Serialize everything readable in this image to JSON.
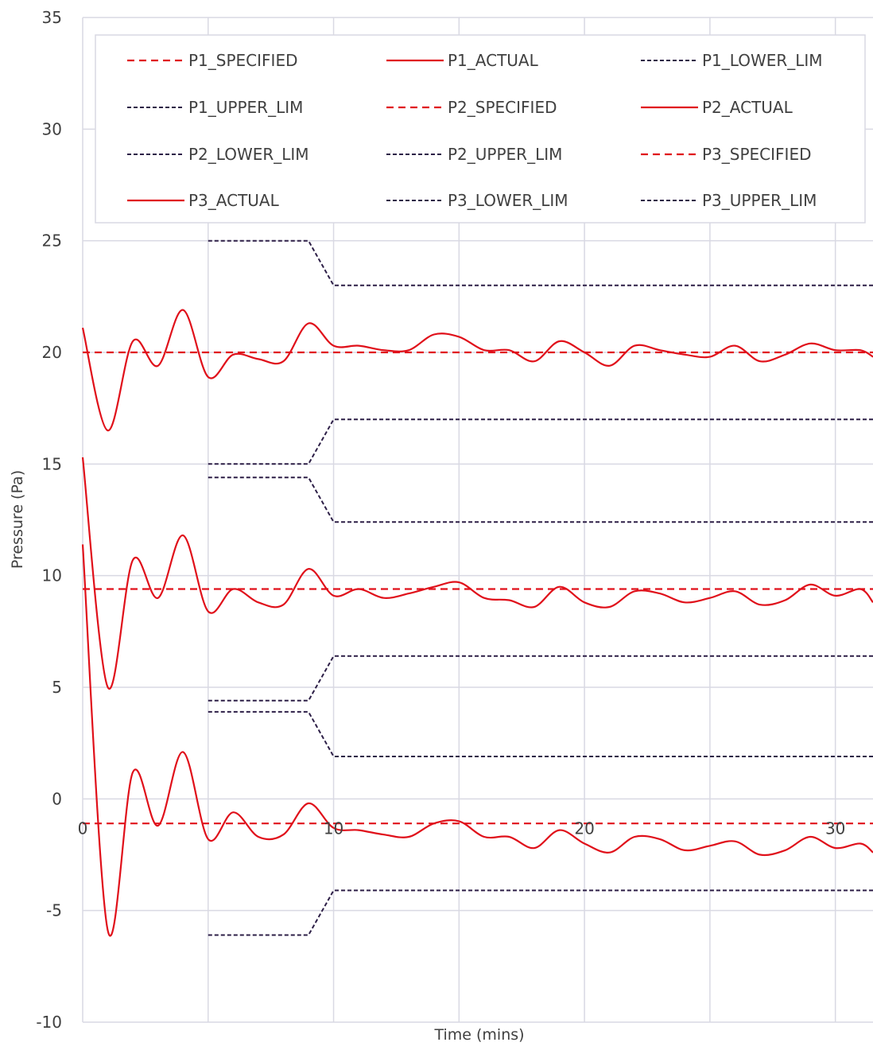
{
  "chart_data": {
    "type": "line",
    "title": "",
    "xlabel": "Time (mins)",
    "ylabel": "Pressure (Pa)",
    "xlim": [
      0,
      31.5
    ],
    "ylim": [
      -10,
      35
    ],
    "x_ticks": [
      0,
      10,
      20,
      30
    ],
    "y_ticks": [
      -10,
      -5,
      0,
      5,
      10,
      15,
      20,
      25,
      30,
      35
    ],
    "x_tick_labels": [
      "0",
      "10",
      "20",
      "30"
    ],
    "y_tick_labels": [
      "-10",
      "-5",
      "0",
      "5",
      "10",
      "15",
      "20",
      "25",
      "30",
      "35"
    ],
    "x_gridlines": [
      0,
      5,
      10,
      15,
      20,
      25,
      30
    ],
    "grid": true,
    "legend_position": "top",
    "colors": {
      "red": "#e0101a",
      "navy": "#2d1f47",
      "grid": "#d9d9e3"
    },
    "series": [
      {
        "name": "P1_SPECIFIED",
        "style": "dashed-red",
        "x": [
          0,
          31.5
        ],
        "y": [
          20,
          20
        ]
      },
      {
        "name": "P1_ACTUAL",
        "style": "solid-red",
        "x": [
          0,
          1,
          2,
          3,
          4,
          5,
          6,
          7,
          8,
          9,
          10,
          11,
          12,
          13,
          14,
          15,
          16,
          17,
          18,
          19,
          20,
          21,
          22,
          23,
          24,
          25,
          26,
          27,
          28,
          29,
          30,
          31,
          31.5
        ],
        "y": [
          21.1,
          16.5,
          20.5,
          19.4,
          21.9,
          18.9,
          19.9,
          19.7,
          19.6,
          21.3,
          20.3,
          20.3,
          20.1,
          20.1,
          20.8,
          20.7,
          20.1,
          20.1,
          19.6,
          20.5,
          20.0,
          19.4,
          20.3,
          20.1,
          19.9,
          19.8,
          20.3,
          19.6,
          19.9,
          20.4,
          20.1,
          20.1,
          19.8
        ]
      },
      {
        "name": "P1_LOWER_LIM",
        "style": "dashed-navy",
        "x": [
          5,
          9,
          10,
          31.5
        ],
        "y": [
          15,
          15,
          17,
          17
        ]
      },
      {
        "name": "P1_UPPER_LIM",
        "style": "dashed-navy",
        "x": [
          5,
          9,
          10,
          31.5
        ],
        "y": [
          25,
          25,
          23,
          23
        ]
      },
      {
        "name": "P2_SPECIFIED",
        "style": "dashed-red",
        "x": [
          0,
          31.5
        ],
        "y": [
          9.4,
          9.4
        ]
      },
      {
        "name": "P2_ACTUAL",
        "style": "solid-red",
        "x": [
          0,
          1,
          2,
          3,
          4,
          5,
          6,
          7,
          8,
          9,
          10,
          11,
          12,
          13,
          14,
          15,
          16,
          17,
          18,
          19,
          20,
          21,
          22,
          23,
          24,
          25,
          26,
          27,
          28,
          29,
          30,
          31,
          31.5
        ],
        "y": [
          15.3,
          5.0,
          10.7,
          9.0,
          11.8,
          8.4,
          9.4,
          8.8,
          8.7,
          10.3,
          9.1,
          9.4,
          9.0,
          9.2,
          9.5,
          9.7,
          9.0,
          8.9,
          8.6,
          9.5,
          8.8,
          8.6,
          9.3,
          9.2,
          8.8,
          9.0,
          9.3,
          8.7,
          8.9,
          9.6,
          9.1,
          9.4,
          8.8
        ]
      },
      {
        "name": "P2_LOWER_LIM",
        "style": "dashed-navy",
        "x": [
          5,
          9,
          10,
          31.5
        ],
        "y": [
          4.4,
          4.4,
          6.4,
          6.4
        ]
      },
      {
        "name": "P2_UPPER_LIM",
        "style": "dashed-navy",
        "x": [
          5,
          9,
          10,
          31.5
        ],
        "y": [
          14.4,
          14.4,
          12.4,
          12.4
        ]
      },
      {
        "name": "P3_SPECIFIED",
        "style": "dashed-red",
        "x": [
          0,
          31.5
        ],
        "y": [
          -1.1,
          -1.1
        ]
      },
      {
        "name": "P3_ACTUAL",
        "style": "solid-red",
        "x": [
          0,
          1,
          2,
          3,
          4,
          5,
          6,
          7,
          8,
          9,
          10,
          11,
          12,
          13,
          14,
          15,
          16,
          17,
          18,
          19,
          20,
          21,
          22,
          23,
          24,
          25,
          26,
          27,
          28,
          29,
          30,
          31,
          31.5
        ],
        "y": [
          11.4,
          -5.9,
          1.2,
          -1.2,
          2.1,
          -1.8,
          -0.6,
          -1.7,
          -1.6,
          -0.2,
          -1.3,
          -1.4,
          -1.6,
          -1.7,
          -1.1,
          -1.0,
          -1.7,
          -1.7,
          -2.2,
          -1.4,
          -2.0,
          -2.4,
          -1.7,
          -1.8,
          -2.3,
          -2.1,
          -1.9,
          -2.5,
          -2.3,
          -1.7,
          -2.2,
          -2.0,
          -2.4
        ]
      },
      {
        "name": "P3_LOWER_LIM",
        "style": "dashed-navy",
        "x": [
          5,
          9,
          10,
          31.5
        ],
        "y": [
          -6.1,
          -6.1,
          -4.1,
          -4.1
        ]
      },
      {
        "name": "P3_UPPER_LIM",
        "style": "dashed-navy",
        "x": [
          5,
          9,
          10,
          31.5
        ],
        "y": [
          3.9,
          3.9,
          1.9,
          1.9
        ]
      }
    ]
  }
}
